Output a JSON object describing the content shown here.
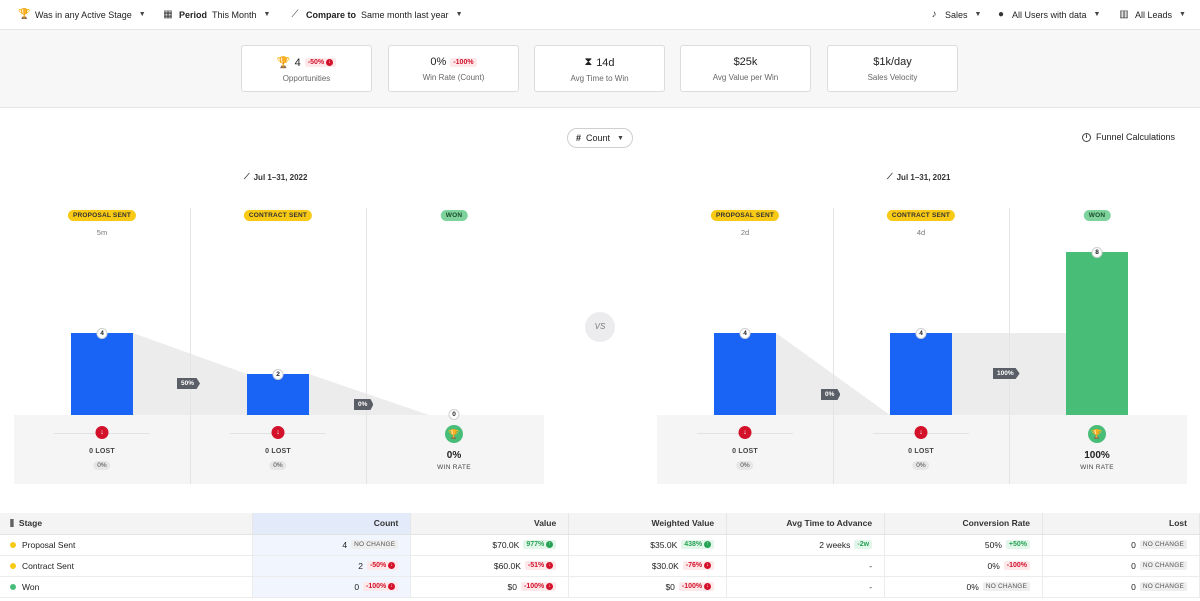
{
  "topbar": {
    "stage_filter": "Was in any Active Stage",
    "period_label": "Period",
    "period_value": "This Month",
    "compare_label": "Compare to",
    "compare_value": "Same month last year",
    "pipeline": "Sales",
    "users": "All Users with data",
    "leads": "All Leads"
  },
  "metrics": [
    {
      "value": "4",
      "badge": "-50%",
      "label": "Opportunities"
    },
    {
      "value": "0%",
      "badge": "-100%",
      "label": "Win Rate (Count)"
    },
    {
      "value": "14d",
      "label": "Avg Time to Win"
    },
    {
      "value": "$25k",
      "label": "Avg Value per Win"
    },
    {
      "value": "$1k/day",
      "label": "Sales Velocity"
    }
  ],
  "controls": {
    "count_label": "Count",
    "funnel_calculations": "Funnel Calculations",
    "vs": "VS"
  },
  "left_funnel": {
    "period": "Jul 1–31, 2022",
    "stages": [
      {
        "name": "PROPOSAL SENT",
        "time": "5m",
        "count": "4",
        "lost": "0 LOST",
        "lost_pct": "0%"
      },
      {
        "name": "CONTRACT SENT",
        "time": "",
        "count": "2",
        "lost": "0 LOST",
        "lost_pct": "0%"
      },
      {
        "name": "WON",
        "count": "0",
        "win_value": "0%",
        "win_label": "WIN RATE"
      }
    ],
    "conversions": [
      "50%",
      "0%"
    ]
  },
  "right_funnel": {
    "period": "Jul 1–31, 2021",
    "stages": [
      {
        "name": "PROPOSAL SENT",
        "time": "2d",
        "count": "4",
        "lost": "0 LOST",
        "lost_pct": "0%"
      },
      {
        "name": "CONTRACT SENT",
        "time": "4d",
        "count": "4",
        "lost": "0 LOST",
        "lost_pct": "0%"
      },
      {
        "name": "WON",
        "count": "8",
        "win_value": "100%",
        "win_label": "WIN RATE"
      }
    ],
    "conversions": [
      "0%",
      "100%"
    ]
  },
  "table": {
    "headers": [
      "Stage",
      "Count",
      "Value",
      "Weighted Value",
      "Avg Time to Advance",
      "Conversion Rate",
      "Lost"
    ],
    "rows": [
      {
        "stage": "Proposal Sent",
        "dot": "#f8c915",
        "count": "4",
        "count_badge": "NO CHANGE",
        "value": "$70.0K",
        "value_badge": "977%",
        "weighted": "$35.0K",
        "weighted_badge": "438%",
        "avg_time": "2 weeks",
        "avg_badge": "-2w",
        "conv": "50%",
        "conv_badge": "+50%",
        "lost": "0",
        "lost_badge": "NO CHANGE"
      },
      {
        "stage": "Contract Sent",
        "dot": "#f8c915",
        "count": "2",
        "count_badge": "-50%",
        "value": "$60.0K",
        "value_badge": "-51%",
        "weighted": "$30.0K",
        "weighted_badge": "-76%",
        "avg_time": "-",
        "conv": "0%",
        "conv_badge": "-100%",
        "lost": "0",
        "lost_badge": "NO CHANGE"
      },
      {
        "stage": "Won",
        "dot": "#48bd78",
        "count": "0",
        "count_badge": "-100%",
        "value": "$0",
        "value_badge": "-100%",
        "weighted": "$0",
        "weighted_badge": "-100%",
        "avg_time": "-",
        "conv": "0%",
        "conv_badge": "NO CHANGE",
        "lost": "0",
        "lost_badge": "NO CHANGE"
      }
    ]
  },
  "colors": {
    "blue_bar": "#1a64f5",
    "green_bar": "#48bd78",
    "red": "#d3112a",
    "green": "#27a254",
    "yellow": "#f8c915"
  }
}
